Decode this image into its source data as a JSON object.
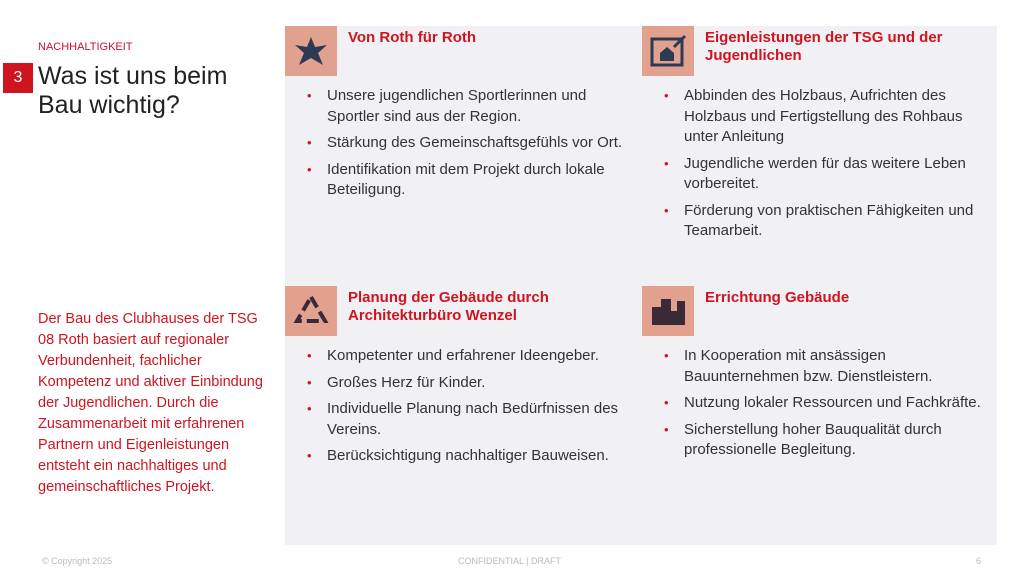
{
  "header": {
    "kicker": "NACHHALTIGKEIT",
    "number": "3",
    "title": "Was ist uns beim Bau wichtig?"
  },
  "intro": "Der Bau des Clubhauses der TSG 08 Roth basiert auf regionaler Verbundenheit, fachlicher Kompetenz und aktiver Einbindung der Jugendlichen. Durch die Zusammenarbeit mit erfahrenen Partnern und Eigenleistungen entsteht ein nachhaltiges und gemeinschaftliches Projekt.",
  "cards": [
    {
      "icon": "community-hands-icon",
      "title": "Von Roth für Roth",
      "bullets": [
        "Unsere jugendlichen Sportlerinnen und Sportler sind aus der Region.",
        "Stärkung des Gemeinschaftsgefühls vor Ort.",
        "Identifikation mit dem Projekt durch lokale Beteiligung."
      ]
    },
    {
      "icon": "house-blueprint-icon",
      "title": "Eigenleistungen der TSG und der Jugendlichen",
      "bullets": [
        "Abbinden des Holzbaus, Aufrichten des Holzbaus und Fertigstellung des Rohbaus unter Anleitung",
        "Jugendliche werden für das weitere Leben vorbereitet.",
        "Förderung von praktischen Fähigkeiten und Teamarbeit."
      ]
    },
    {
      "icon": "recycle-icon",
      "title": "Planung der Gebäude durch Architekturbüro Wenzel",
      "bullets": [
        "Kompetenter und erfahrener Ideengeber.",
        "Großes Herz für Kinder.",
        "Individuelle Planung nach Bedürfnissen des Vereins.",
        "Berücksichtigung nachhaltiger Bauweisen."
      ]
    },
    {
      "icon": "buildings-icon",
      "title": "Errichtung Gebäude",
      "bullets": [
        "In Kooperation mit ansässigen Bauunternehmen bzw. Dienstleistern.",
        "Nutzung lokaler Ressourcen und Fachkräfte.",
        "Sicherstellung hoher Bauqualität durch professionelle Begleitung."
      ]
    }
  ],
  "footer": {
    "copyright": "© Copyright 2025",
    "confidential": "CONFIDENTIAL | DRAFT",
    "page": "6"
  },
  "colors": {
    "accent": "#d0141f",
    "icon_bg": "#e2a18e",
    "panel": "#f0f0f5",
    "icon_fg": "#2b3a55"
  }
}
